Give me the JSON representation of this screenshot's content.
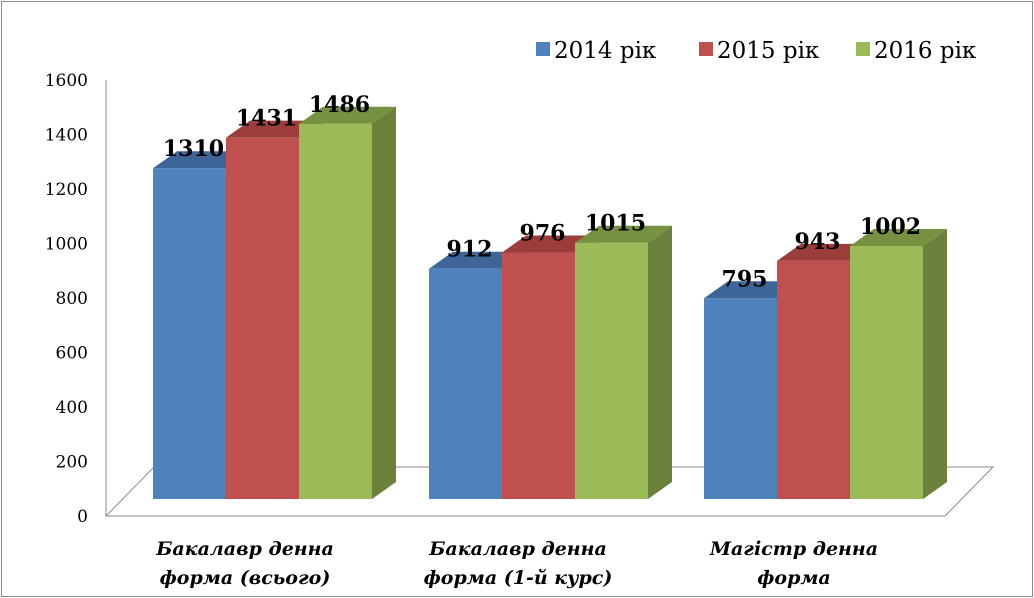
{
  "chart_data": {
    "type": "bar",
    "style": "3d-clustered-column",
    "categories": [
      [
        "Бакалавр денна",
        "форма (всього)"
      ],
      [
        "Бакалавр денна",
        "форма (1-й курс)"
      ],
      [
        "Магістр денна",
        "форма"
      ]
    ],
    "series": [
      {
        "name": "2014 рік",
        "values": [
          1310,
          912,
          795
        ],
        "color": "#4f81bd",
        "side": "#385d8a",
        "top": "#3e6597"
      },
      {
        "name": "2015 рік",
        "values": [
          1431,
          976,
          943
        ],
        "color": "#c0504d",
        "side": "#8c3836",
        "top": "#9b3d3b"
      },
      {
        "name": "2016 рік",
        "values": [
          1486,
          1015,
          1002
        ],
        "color": "#9bbb59",
        "side": "#6b813b",
        "top": "#76913f"
      }
    ],
    "yticks": [
      0,
      200,
      400,
      600,
      800,
      1000,
      1200,
      1400,
      1600
    ],
    "ylim": [
      0,
      1600
    ],
    "grid": false,
    "legend_position": "top-right",
    "title": "",
    "xlabel": "",
    "ylabel": ""
  }
}
